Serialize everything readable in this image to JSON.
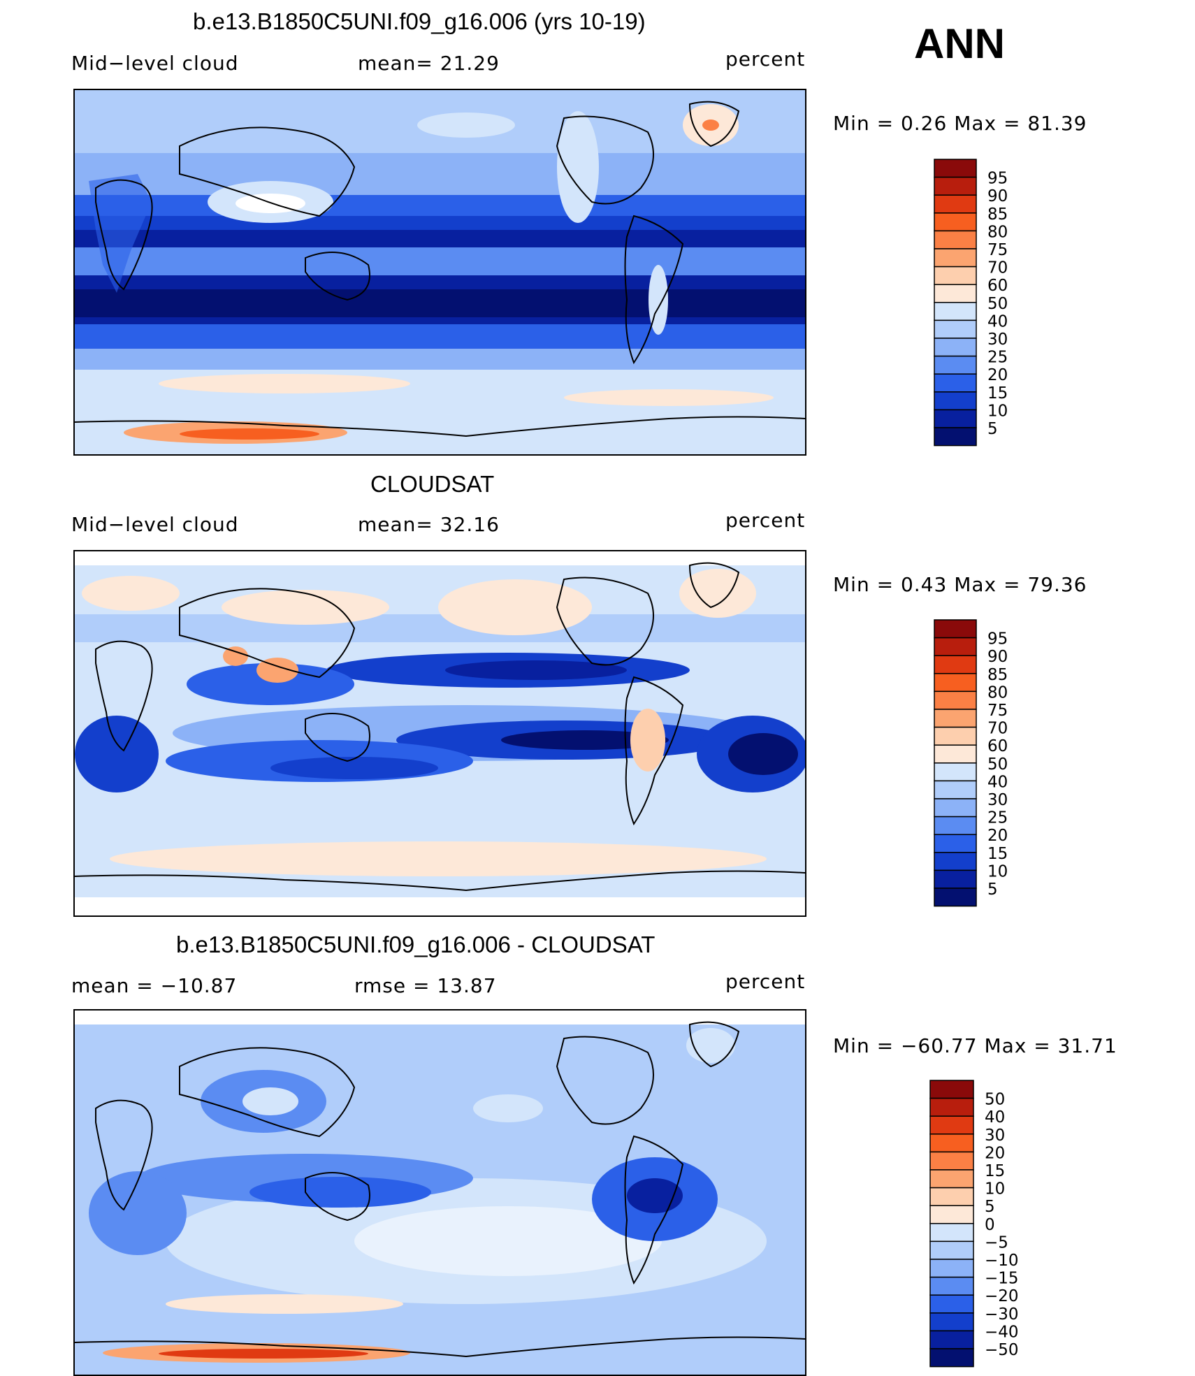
{
  "season": "ANN",
  "colorbar_labels_standard": [
    "95",
    "90",
    "85",
    "80",
    "75",
    "70",
    "60",
    "50",
    "40",
    "30",
    "25",
    "20",
    "15",
    "10",
    "5"
  ],
  "colorbar_labels_diff": [
    "50",
    "40",
    "30",
    "20",
    "15",
    "10",
    "5",
    "0",
    "−5",
    "−10",
    "−15",
    "−20",
    "−30",
    "−40",
    "−50"
  ],
  "colors_standard": [
    "#8a0a0a",
    "#b81e0d",
    "#e03a12",
    "#f75f20",
    "#fb8045",
    "#fba470",
    "#fdcfae",
    "#fde8d8",
    "#d3e5fb",
    "#b0cdfa",
    "#8cb2f7",
    "#5b8cf2",
    "#2b60e8",
    "#133fcc",
    "#08209f",
    "#031070"
  ],
  "panels": [
    {
      "title": "b.e13.B1850C5UNI.f09_g16.006 (yrs 10-19)",
      "left_label": "Mid−level cloud",
      "center_label": "mean=   21.29",
      "units": "percent",
      "minmax": "Min  =     0.26  Max  =    81.39"
    },
    {
      "title": "CLOUDSAT",
      "left_label": "Mid−level cloud",
      "center_label": "mean=   32.16",
      "units": "percent",
      "minmax": "Min  =     0.43  Max  =    79.36"
    },
    {
      "title": "b.e13.B1850C5UNI.f09_g16.006 - CLOUDSAT",
      "left_label": "mean  =  −10.87",
      "center_label": "rmse  =    13.87",
      "units": "percent",
      "minmax": "Min  = −60.77  Max  =    31.71"
    }
  ]
}
